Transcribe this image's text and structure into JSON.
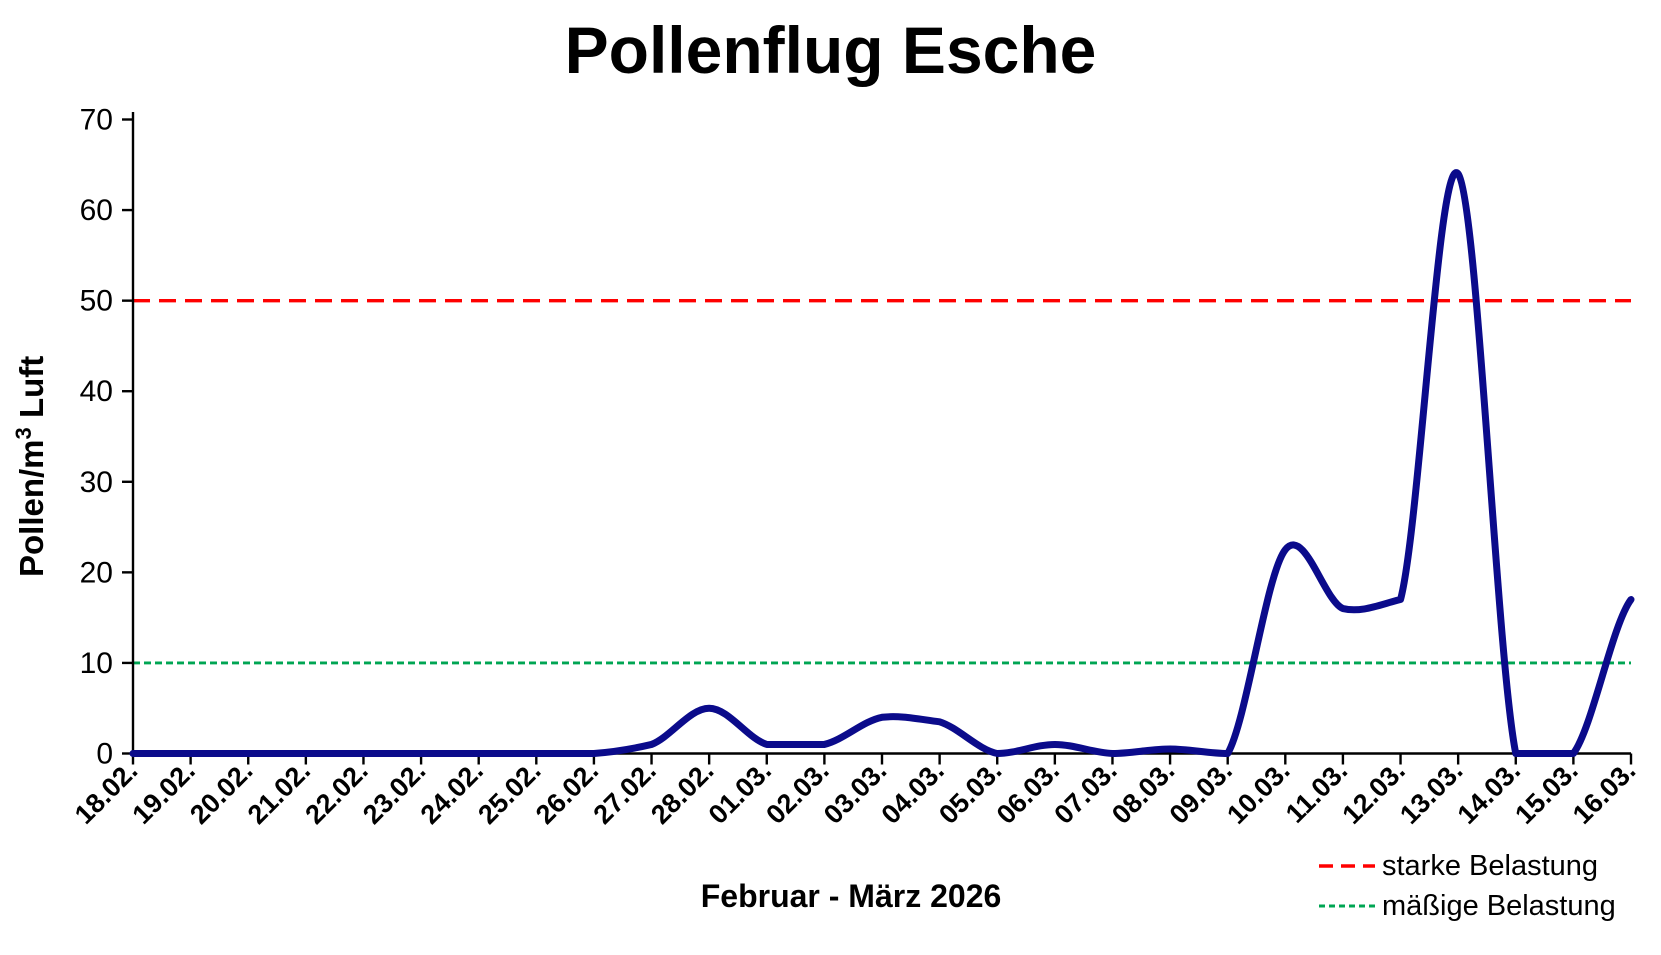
{
  "title": "Pollenflug Esche",
  "y_axis_title": {
    "prefix": "Pollen/m",
    "sup": "3",
    "suffix": " Luft"
  },
  "x_axis_title": "Februar - März 2026",
  "chart_data": {
    "type": "line",
    "smooth": true,
    "grid": false,
    "legend_position": "bottom-right",
    "categories": [
      "18.02.",
      "19.02.",
      "20.02.",
      "21.02.",
      "22.02.",
      "23.02.",
      "24.02.",
      "25.02.",
      "26.02.",
      "27.02.",
      "28.02.",
      "01.03.",
      "02.03.",
      "03.03.",
      "04.03.",
      "05.03.",
      "06.03.",
      "07.03.",
      "08.03.",
      "09.03.",
      "10.03.",
      "11.03.",
      "12.03.",
      "13.03.",
      "14.03.",
      "15.03.",
      "16.03."
    ],
    "series": [
      {
        "name": "Pollenflug Esche",
        "color": "#0B0B8B",
        "values": [
          0,
          0,
          0,
          0,
          0,
          0,
          0,
          0,
          0,
          1,
          5,
          1,
          1,
          4,
          3.5,
          0,
          1,
          0,
          0.5,
          0,
          22.5,
          16,
          17,
          64,
          0,
          0,
          17
        ]
      }
    ],
    "thresholds": [
      {
        "label": "starke Belastung",
        "value": 50,
        "color": "#FF0000",
        "style": "dashed"
      },
      {
        "label": "mäßige Belastung",
        "value": 10,
        "color": "#00A553",
        "style": "dotted"
      }
    ],
    "y_ticks": [
      0,
      10,
      20,
      30,
      40,
      50,
      60,
      70
    ],
    "ylim": [
      0,
      70
    ],
    "xlabel": "Februar - März 2026",
    "ylabel": "Pollen/m³ Luft"
  }
}
